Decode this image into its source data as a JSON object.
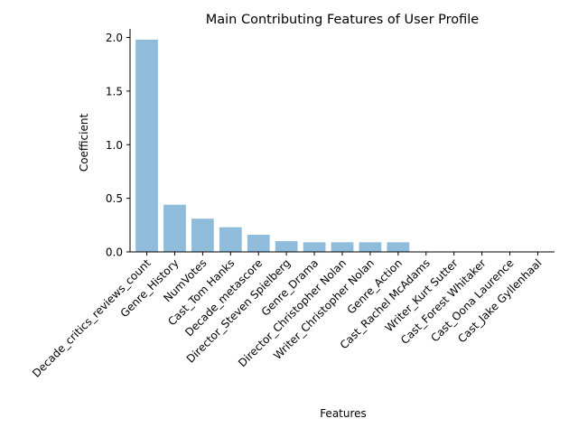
{
  "chart_data": {
    "type": "bar",
    "title": "Main Contributing Features of User Profile",
    "xlabel": "Features",
    "ylabel": "Coefficient",
    "ylim": [
      0,
      2.08
    ],
    "yticks": [
      0.0,
      0.5,
      1.0,
      1.5,
      2.0
    ],
    "ytick_labels": [
      "0.0",
      "0.5",
      "1.0",
      "1.5",
      "2.0"
    ],
    "grid": false,
    "bar_color": "#8fbcdb",
    "categories": [
      "Decade_critics_reviews_count",
      "Genre_History",
      "NumVotes",
      "Cast_Tom Hanks",
      "Decade_metascore",
      "Director_Steven Spielberg",
      "Genre_Drama",
      "Director_Christopher Nolan",
      "Writer_Christopher Nolan",
      "Genre_Action",
      "Cast_Rachel McAdams",
      "Writer_Kurt Sutter",
      "Cast_Forest Whitaker",
      "Cast_Oona Laurence",
      "Cast_Jake Gyllenhaal"
    ],
    "values": [
      1.98,
      0.44,
      0.31,
      0.23,
      0.16,
      0.1,
      0.09,
      0.09,
      0.09,
      0.09,
      0.0,
      0.0,
      0.0,
      0.0,
      0.0
    ]
  }
}
